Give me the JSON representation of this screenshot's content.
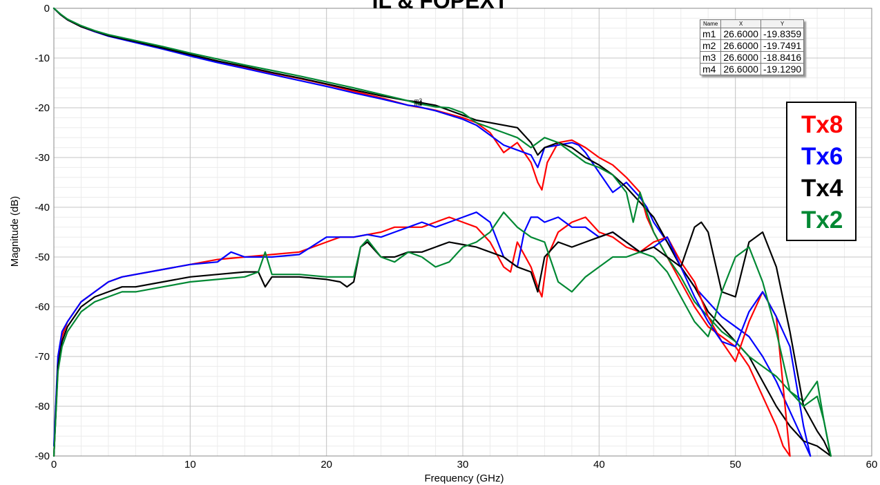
{
  "chart_data": {
    "type": "line",
    "title": "IL & FOPEXT",
    "xlabel": "Frequency (GHz)",
    "ylabel": "Magnitude (dB)",
    "xlim": [
      0,
      60
    ],
    "ylim": [
      -90,
      0
    ],
    "x_ticks": [
      "0",
      "10",
      "20",
      "30",
      "40",
      "50",
      "60"
    ],
    "y_ticks": [
      "0",
      "-10",
      "-20",
      "-30",
      "-40",
      "-50",
      "-60",
      "-70",
      "-80",
      "-90"
    ],
    "grid": true,
    "legend": {
      "placement": "right",
      "entries": [
        "Tx8",
        "Tx6",
        "Tx4",
        "Tx2"
      ]
    },
    "markers": {
      "headers": [
        "Name",
        "X",
        "Y"
      ],
      "rows": [
        [
          "m1",
          "26.6000",
          "-19.8359"
        ],
        [
          "m2",
          "26.6000",
          "-19.7491"
        ],
        [
          "m3",
          "26.6000",
          "-18.8416"
        ],
        [
          "m4",
          "26.6000",
          "-19.1290"
        ]
      ]
    },
    "series": [
      {
        "name": "Tx8",
        "color": "#ff0000",
        "x": [
          0,
          0.5,
          1,
          2,
          3,
          4,
          6,
          8,
          10,
          12,
          14,
          16,
          18,
          20,
          22,
          24,
          26,
          26.6,
          28,
          30,
          31,
          32,
          32.5,
          33,
          34,
          35,
          35.5,
          35.8,
          36.2,
          37,
          38,
          39,
          40,
          41,
          42,
          43,
          43.5,
          44,
          45,
          46,
          47,
          48,
          49,
          50,
          51,
          52,
          53,
          53.5,
          54
        ],
        "values": [
          0,
          -1.3,
          -2.3,
          -3.7,
          -4.7,
          -5.5,
          -6.8,
          -8,
          -9.3,
          -10.6,
          -11.8,
          -13,
          -14.1,
          -15.3,
          -16.7,
          -18,
          -19.5,
          -19.8,
          -20.5,
          -22,
          -23,
          -25,
          -27,
          -29,
          -27,
          -31,
          -35,
          -36.5,
          -31,
          -27,
          -26.5,
          -28,
          -30,
          -31.5,
          -34,
          -37,
          -42,
          -45,
          -50,
          -55,
          -60,
          -64,
          -66,
          -68,
          -72,
          -78,
          -84,
          -88,
          -90
        ]
      },
      {
        "name": "Tx6",
        "color": "#0000ff",
        "x": [
          0,
          0.5,
          1,
          2,
          3,
          4,
          6,
          8,
          10,
          12,
          14,
          16,
          18,
          20,
          22,
          24,
          26,
          26.6,
          28,
          30,
          31,
          32,
          33,
          34,
          35,
          35.5,
          36,
          37,
          38,
          38.5,
          39,
          40,
          41,
          42,
          43,
          43.5,
          44,
          45,
          46,
          47,
          48,
          49,
          50,
          51,
          52,
          53,
          54,
          55,
          55.5
        ],
        "values": [
          0,
          -1.3,
          -2.3,
          -3.7,
          -4.7,
          -5.6,
          -6.9,
          -8.2,
          -9.6,
          -10.9,
          -12.1,
          -13.3,
          -14.5,
          -15.7,
          -17,
          -18.2,
          -19.5,
          -19.7,
          -20.6,
          -22.3,
          -23.5,
          -25.5,
          -27.5,
          -28.5,
          -29.5,
          -32,
          -28,
          -27.5,
          -27,
          -27.5,
          -29,
          -33,
          -37,
          -35,
          -38,
          -40,
          -43,
          -47,
          -52,
          -56,
          -59,
          -62,
          -64,
          -66,
          -70,
          -75,
          -81,
          -87,
          -90
        ]
      },
      {
        "name": "Tx4",
        "color": "#000000",
        "x": [
          0,
          0.5,
          1,
          2,
          3,
          4,
          6,
          8,
          10,
          12,
          14,
          16,
          18,
          20,
          22,
          24,
          26,
          26.6,
          28,
          29,
          30,
          31,
          32,
          33,
          34,
          35,
          35.5,
          36,
          36.5,
          37,
          38,
          39,
          40,
          41,
          42,
          43,
          44,
          45,
          46,
          47,
          48,
          49,
          50,
          51,
          52,
          53,
          54,
          55,
          56,
          56.5,
          57
        ],
        "values": [
          0,
          -1.3,
          -2.3,
          -3.7,
          -4.6,
          -5.5,
          -6.7,
          -8,
          -9.3,
          -10.6,
          -11.7,
          -12.9,
          -14,
          -15.2,
          -16.4,
          -17.6,
          -18.6,
          -18.8,
          -19.5,
          -20.5,
          -21.5,
          -22.5,
          -23,
          -23.5,
          -24,
          -27,
          -29.5,
          -28,
          -27.5,
          -27,
          -28,
          -30,
          -31.5,
          -33.5,
          -36,
          -39,
          -42,
          -47,
          -52,
          -56,
          -61,
          -64,
          -67,
          -70,
          -75,
          -80,
          -84,
          -87,
          -88,
          -89,
          -90
        ]
      },
      {
        "name": "Tx2",
        "color": "#008833",
        "x": [
          0,
          0.5,
          1,
          2,
          3,
          4,
          6,
          8,
          10,
          12,
          14,
          16,
          18,
          20,
          22,
          24,
          26,
          26.6,
          28,
          29,
          30,
          31,
          32,
          33,
          34,
          35,
          36,
          37,
          38,
          39,
          40,
          41,
          42,
          42.5,
          43,
          44,
          45,
          46,
          47,
          48,
          49,
          50,
          51,
          52,
          53,
          54,
          55,
          56,
          56.5,
          57
        ],
        "values": [
          0,
          -1.2,
          -2.2,
          -3.5,
          -4.5,
          -5.3,
          -6.5,
          -7.7,
          -9,
          -10.2,
          -11.4,
          -12.5,
          -13.6,
          -14.8,
          -16,
          -17.3,
          -18.6,
          -19.1,
          -19.8,
          -20,
          -21,
          -23,
          -24,
          -25,
          -26,
          -28,
          -26,
          -27,
          -29,
          -31,
          -32,
          -33.5,
          -37,
          -43,
          -37,
          -45,
          -50,
          -54,
          -59,
          -62,
          -65,
          -67,
          -70,
          -72,
          -74,
          -77,
          -79,
          -75,
          -83,
          -90
        ]
      },
      {
        "name": "Tx8",
        "color": "#ff0000",
        "x": [
          0,
          0.3,
          0.6,
          1,
          2,
          3,
          4,
          5,
          6,
          8,
          10,
          12,
          14,
          16,
          18,
          20,
          21,
          22,
          23,
          24,
          25,
          26,
          27,
          28,
          29,
          30,
          31,
          32,
          33,
          33.5,
          34,
          35,
          35.5,
          35.8,
          36.2,
          37,
          37.5,
          38,
          39,
          40,
          41,
          42,
          43,
          44,
          45,
          46,
          47,
          48,
          49,
          50,
          51,
          52,
          53,
          54
        ],
        "values": [
          -90,
          -72,
          -66,
          -63,
          -59,
          -57,
          -55,
          -54,
          -53.5,
          -52.5,
          -51.5,
          -50.5,
          -50,
          -49.5,
          -49,
          -47,
          -46,
          -46,
          -45.5,
          -45,
          -44,
          -44,
          -44,
          -43,
          -42,
          -43,
          -44,
          -47,
          -52,
          -53,
          -47,
          -52,
          -56,
          -58,
          -50,
          -45,
          -44,
          -43,
          -42,
          -45,
          -46,
          -48,
          -49,
          -47,
          -46,
          -51,
          -55,
          -62,
          -67,
          -71,
          -63,
          -57,
          -62,
          -90
        ]
      },
      {
        "name": "Tx6",
        "color": "#0000ff",
        "x": [
          0,
          0.3,
          0.6,
          1,
          2,
          3,
          4,
          5,
          6,
          8,
          10,
          12,
          13,
          14,
          16,
          18,
          20,
          22,
          23,
          24,
          25,
          26,
          27,
          28,
          29,
          30,
          31,
          32,
          33,
          34,
          34.5,
          35,
          35.5,
          36,
          37,
          38,
          39,
          40,
          41,
          42,
          43,
          44,
          45,
          46,
          47,
          48,
          49,
          50,
          51,
          52,
          53,
          54,
          55,
          55.5
        ],
        "values": [
          -88,
          -70,
          -65,
          -63,
          -59,
          -57,
          -55,
          -54,
          -53.5,
          -52.5,
          -51.5,
          -51,
          -49,
          -50,
          -50,
          -49.5,
          -46,
          -46,
          -45.5,
          -46,
          -45,
          -44,
          -43,
          -44,
          -43,
          -42,
          -41,
          -43,
          -50,
          -52,
          -45,
          -42,
          -42,
          -43,
          -42,
          -44,
          -44,
          -46,
          -45,
          -47,
          -49,
          -48,
          -46,
          -52,
          -58,
          -63,
          -67,
          -68,
          -61,
          -57,
          -62,
          -68,
          -84,
          -90
        ]
      },
      {
        "name": "Tx4",
        "color": "#000000",
        "x": [
          0,
          0.3,
          0.6,
          1,
          2,
          3,
          4,
          5,
          6,
          8,
          10,
          12,
          14,
          15,
          15.5,
          16,
          18,
          20,
          21,
          21.5,
          22,
          22.5,
          23,
          24,
          25,
          26,
          27,
          28,
          29,
          30,
          31,
          32,
          33,
          34,
          35,
          35.5,
          36,
          37,
          38,
          39,
          40,
          41,
          42,
          43,
          44,
          45,
          46,
          47,
          47.5,
          48,
          49,
          50,
          51,
          52,
          53,
          54,
          55,
          56,
          56.5,
          57
        ],
        "values": [
          -90,
          -72,
          -67,
          -64,
          -60,
          -58,
          -57,
          -56,
          -56,
          -55,
          -54,
          -53.5,
          -53,
          -53,
          -56,
          -54,
          -54,
          -54.5,
          -55,
          -56,
          -55,
          -48,
          -47,
          -50,
          -50,
          -49,
          -49,
          -48,
          -47,
          -47.5,
          -48,
          -49,
          -50,
          -52,
          -53,
          -57,
          -50,
          -47,
          -48,
          -47,
          -46,
          -45,
          -47,
          -49,
          -48,
          -50,
          -52,
          -44,
          -43,
          -45,
          -57,
          -58,
          -47,
          -45,
          -52,
          -65,
          -80,
          -85,
          -87,
          -90
        ]
      },
      {
        "name": "Tx2",
        "color": "#008833",
        "x": [
          0,
          0.3,
          0.6,
          1,
          2,
          3,
          4,
          5,
          6,
          8,
          10,
          12,
          14,
          15,
          15.5,
          16,
          18,
          20,
          22,
          22.5,
          23,
          24,
          25,
          26,
          27,
          28,
          29,
          30,
          31,
          32,
          33,
          34,
          35,
          36,
          37,
          38,
          39,
          40,
          41,
          42,
          43,
          44,
          45,
          46,
          47,
          48,
          48.5,
          49,
          50,
          51,
          52,
          53,
          54,
          55,
          56,
          56.5,
          57
        ],
        "values": [
          -90,
          -73,
          -68,
          -65,
          -61,
          -59,
          -58,
          -57,
          -57,
          -56,
          -55,
          -54.5,
          -54,
          -53,
          -49,
          -53.5,
          -53.5,
          -54,
          -54,
          -48,
          -46.5,
          -50,
          -51,
          -49,
          -50,
          -52,
          -51,
          -48,
          -47,
          -45,
          -41,
          -44,
          -46,
          -47,
          -55,
          -57,
          -54,
          -52,
          -50,
          -50,
          -49,
          -50,
          -53,
          -58,
          -63,
          -66,
          -62,
          -57,
          -50,
          -48,
          -55,
          -65,
          -77,
          -80,
          -78,
          -83,
          -90
        ]
      }
    ]
  }
}
